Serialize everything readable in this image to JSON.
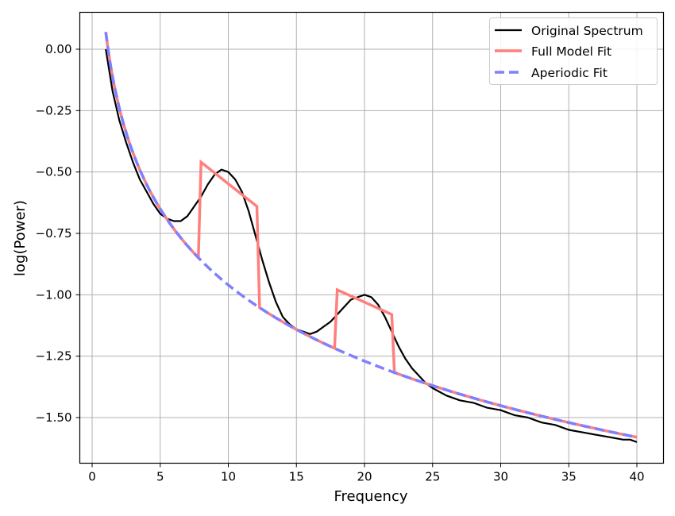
{
  "chart_data": {
    "type": "line",
    "title": "",
    "xlabel": "Frequency",
    "ylabel": "log(Power)",
    "xlim": [
      -0.95,
      41.95
    ],
    "ylim": [
      -1.68,
      0.15
    ],
    "xticks": [
      0,
      5,
      10,
      15,
      20,
      25,
      30,
      35,
      40
    ],
    "xtick_labels": [
      "0",
      "5",
      "10",
      "15",
      "20",
      "25",
      "30",
      "35",
      "40"
    ],
    "yticks": [
      0.0,
      -0.25,
      -0.5,
      -0.75,
      -1.0,
      -1.25,
      -1.5
    ],
    "ytick_labels": [
      "0.00",
      "−0.25",
      "−0.50",
      "−0.75",
      "−1.00",
      "−1.25",
      "−1.50"
    ],
    "grid": true,
    "legend_position": "upper right",
    "series": [
      {
        "name": "Original Spectrum",
        "color": "#000000",
        "style": "solid",
        "x": [
          1,
          1.5,
          2,
          2.5,
          3,
          3.5,
          4,
          4.5,
          5,
          5.5,
          6,
          6.5,
          7,
          7.5,
          8,
          8.5,
          9,
          9.5,
          10,
          10.5,
          11,
          11.5,
          12,
          12.5,
          13,
          13.5,
          14,
          14.5,
          15,
          15.5,
          16,
          16.5,
          17,
          17.5,
          18,
          18.5,
          19,
          19.5,
          20,
          20.5,
          21,
          21.5,
          22,
          22.5,
          23,
          23.5,
          24,
          24.5,
          25,
          26,
          27,
          28,
          29,
          30,
          31,
          32,
          33,
          34,
          35,
          36,
          37,
          38,
          39,
          39.5,
          40
        ],
        "values": [
          0.0,
          -0.17,
          -0.29,
          -0.38,
          -0.46,
          -0.53,
          -0.58,
          -0.63,
          -0.67,
          -0.69,
          -0.7,
          -0.7,
          -0.68,
          -0.64,
          -0.6,
          -0.55,
          -0.51,
          -0.49,
          -0.5,
          -0.53,
          -0.58,
          -0.66,
          -0.76,
          -0.86,
          -0.95,
          -1.03,
          -1.09,
          -1.12,
          -1.14,
          -1.15,
          -1.16,
          -1.15,
          -1.13,
          -1.11,
          -1.08,
          -1.05,
          -1.02,
          -1.01,
          -1.0,
          -1.01,
          -1.04,
          -1.09,
          -1.15,
          -1.21,
          -1.26,
          -1.3,
          -1.33,
          -1.36,
          -1.38,
          -1.41,
          -1.43,
          -1.44,
          -1.46,
          -1.47,
          -1.49,
          -1.5,
          -1.52,
          -1.53,
          -1.55,
          -1.56,
          -1.57,
          -1.58,
          -1.59,
          -1.59,
          -1.6
        ]
      },
      {
        "name": "Full Model Fit",
        "color": "#ff7f7f",
        "style": "solid",
        "x": [
          1,
          1.5,
          2,
          2.5,
          3,
          3.5,
          4,
          5,
          6,
          7,
          7.8,
          8.0,
          12.1,
          12.3,
          13,
          14,
          15,
          16,
          17,
          17.8,
          18.0,
          22.0,
          22.2,
          23,
          25,
          27,
          30,
          33,
          36,
          40
        ],
        "values": [
          0.07,
          -0.11,
          -0.24,
          -0.34,
          -0.42,
          -0.49,
          -0.55,
          -0.65,
          -0.73,
          -0.8,
          -0.85,
          -0.46,
          -0.64,
          -1.05,
          -1.08,
          -1.11,
          -1.14,
          -1.17,
          -1.2,
          -1.22,
          -0.98,
          -1.08,
          -1.31,
          -1.33,
          -1.37,
          -1.41,
          -1.45,
          -1.49,
          -1.53,
          -1.58
        ]
      },
      {
        "name": "Aperiodic Fit",
        "color": "#7f7fff",
        "style": "dashed",
        "offset": 0.07,
        "exponent": 1.03,
        "x": [
          1,
          1.5,
          2,
          3,
          4,
          5,
          6,
          8,
          10,
          12,
          15,
          18,
          20,
          22,
          25,
          30,
          35,
          40
        ],
        "values": [
          0.07,
          -0.11,
          -0.24,
          -0.42,
          -0.55,
          -0.65,
          -0.73,
          -0.86,
          -0.96,
          -1.04,
          -1.14,
          -1.22,
          -1.27,
          -1.31,
          -1.37,
          -1.45,
          -1.52,
          -1.58
        ]
      }
    ]
  },
  "legend": {
    "items": [
      {
        "label": "Original Spectrum",
        "color": "#000000",
        "style": "solid"
      },
      {
        "label": "Full Model Fit",
        "color": "#ff7f7f",
        "style": "solid"
      },
      {
        "label": "Aperiodic Fit",
        "color": "#7f7fff",
        "style": "dashed"
      }
    ]
  },
  "axes": {
    "xlabel": "Frequency",
    "ylabel": "log(Power)"
  }
}
